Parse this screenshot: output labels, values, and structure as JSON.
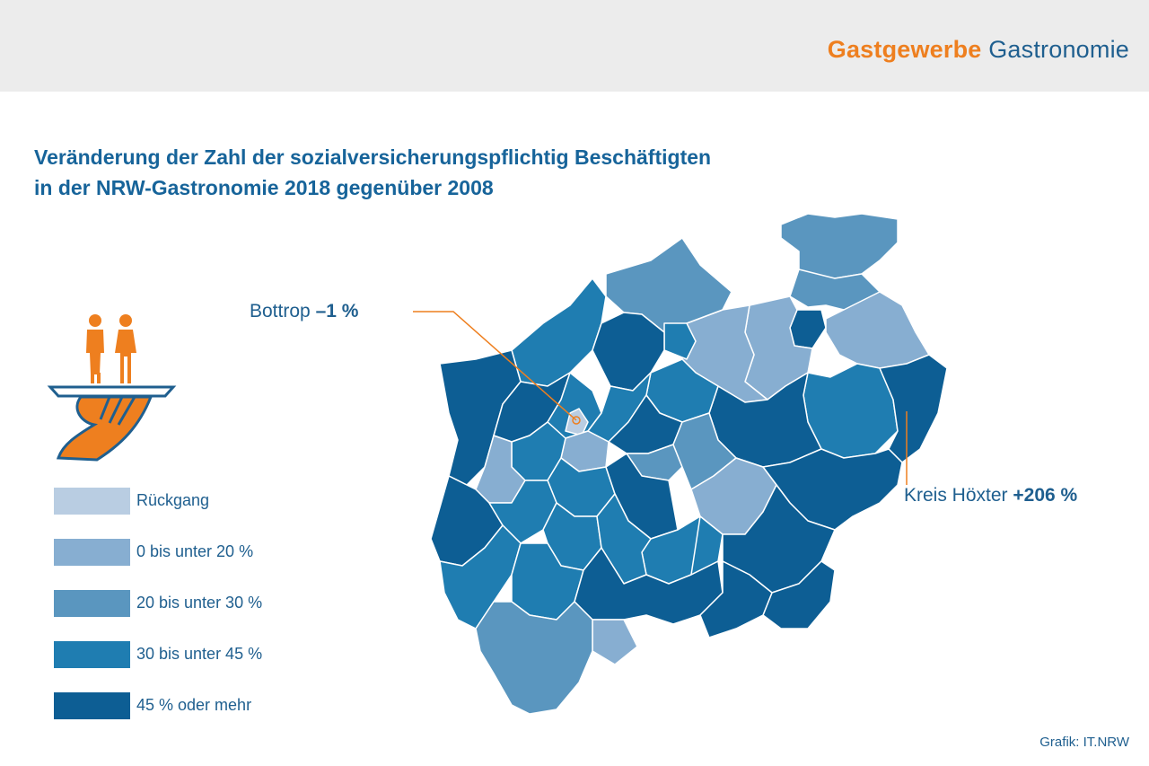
{
  "header": {
    "brand_primary": "Gastgewerbe",
    "brand_secondary": "Gastronomie"
  },
  "title": {
    "line1": "Veränderung der Zahl der sozialversicherungspflichtig Beschäftigten",
    "line2": "in der NRW-Gastronomie 2018 gegenüber 2008"
  },
  "legend": [
    {
      "label": "Rückgang",
      "color": "#b9cde2"
    },
    {
      "label": "0 bis unter 20 %",
      "color": "#87aed1"
    },
    {
      "label": "20 bis unter 30 %",
      "color": "#5a96bf"
    },
    {
      "label": "30 bis unter 45 %",
      "color": "#1f7db1"
    },
    {
      "label": "45 % oder mehr",
      "color": "#0d5e94"
    }
  ],
  "callouts": {
    "bottrop": {
      "name": "Bottrop",
      "value": "–1 %"
    },
    "hoexter": {
      "name": "Kreis Höxter",
      "value": "+206 %"
    }
  },
  "source": "Grafik: IT.NRW",
  "colors": {
    "accent": "#ee7f1f",
    "title": "#17649a"
  },
  "icons": [
    "waiter-tray-icon"
  ]
}
